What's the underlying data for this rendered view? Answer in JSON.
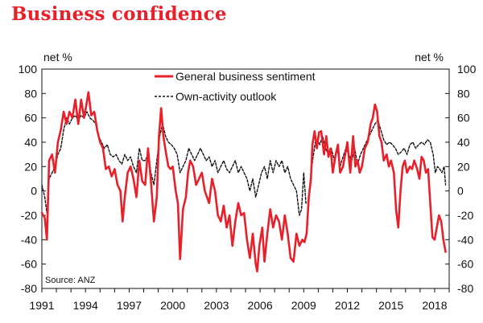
{
  "title": "Business confidence",
  "colors": {
    "title": "#e8202a",
    "sentiment": "#e8202a",
    "outlook": "#111111"
  },
  "chart_data": {
    "type": "line",
    "title": "Business confidence",
    "ylabel_left": "net %",
    "ylabel_right": "net %",
    "ylim": [
      -80,
      100
    ],
    "yticks": [
      100,
      80,
      60,
      40,
      20,
      0,
      -20,
      -40,
      -60,
      -80
    ],
    "yticks_right": [
      100,
      80,
      60,
      40,
      20,
      0,
      -20,
      -40,
      -60,
      -80
    ],
    "xlim": [
      1991,
      2019
    ],
    "xticks": [
      1991,
      1994,
      1997,
      2000,
      2003,
      2006,
      2009,
      2012,
      2015,
      2018
    ],
    "source": "Source: ANZ",
    "legend_location": "top-center",
    "series": [
      {
        "name": "General business sentiment",
        "style": "solid-red",
        "points": [
          [
            1991.0,
            -18
          ],
          [
            1991.2,
            -22
          ],
          [
            1991.35,
            -40
          ],
          [
            1991.5,
            25
          ],
          [
            1991.7,
            30
          ],
          [
            1991.9,
            15
          ],
          [
            1992.1,
            40
          ],
          [
            1992.3,
            50
          ],
          [
            1992.5,
            65
          ],
          [
            1992.7,
            55
          ],
          [
            1992.9,
            65
          ],
          [
            1993.1,
            60
          ],
          [
            1993.3,
            75
          ],
          [
            1993.5,
            55
          ],
          [
            1993.7,
            75
          ],
          [
            1993.9,
            60
          ],
          [
            1994.05,
            70
          ],
          [
            1994.2,
            81
          ],
          [
            1994.4,
            62
          ],
          [
            1994.6,
            65
          ],
          [
            1994.8,
            50
          ],
          [
            1995.0,
            40
          ],
          [
            1995.2,
            35
          ],
          [
            1995.4,
            18
          ],
          [
            1995.6,
            20
          ],
          [
            1995.8,
            12
          ],
          [
            1996.0,
            18
          ],
          [
            1996.2,
            5
          ],
          [
            1996.4,
            0
          ],
          [
            1996.55,
            -25
          ],
          [
            1996.7,
            -5
          ],
          [
            1996.9,
            15
          ],
          [
            1997.1,
            20
          ],
          [
            1997.3,
            10
          ],
          [
            1997.5,
            -5
          ],
          [
            1997.7,
            25
          ],
          [
            1997.9,
            8
          ],
          [
            1998.1,
            5
          ],
          [
            1998.3,
            35
          ],
          [
            1998.5,
            8
          ],
          [
            1998.7,
            -25
          ],
          [
            1998.9,
            -5
          ],
          [
            1999.05,
            45
          ],
          [
            1999.2,
            68
          ],
          [
            1999.35,
            45
          ],
          [
            1999.55,
            30
          ],
          [
            1999.7,
            20
          ],
          [
            1999.85,
            18
          ],
          [
            2000.0,
            20
          ],
          [
            2000.2,
            0
          ],
          [
            2000.35,
            -10
          ],
          [
            2000.5,
            -56
          ],
          [
            2000.7,
            -15
          ],
          [
            2000.9,
            -5
          ],
          [
            2001.05,
            15
          ],
          [
            2001.2,
            25
          ],
          [
            2001.4,
            20
          ],
          [
            2001.6,
            5
          ],
          [
            2001.8,
            10
          ],
          [
            2002.0,
            15
          ],
          [
            2002.2,
            0
          ],
          [
            2002.35,
            -5
          ],
          [
            2002.5,
            -10
          ],
          [
            2002.7,
            10
          ],
          [
            2002.9,
            0
          ],
          [
            2003.1,
            -20
          ],
          [
            2003.3,
            -25
          ],
          [
            2003.5,
            -12
          ],
          [
            2003.7,
            -30
          ],
          [
            2003.9,
            -20
          ],
          [
            2004.1,
            -45
          ],
          [
            2004.3,
            -25
          ],
          [
            2004.5,
            -10
          ],
          [
            2004.7,
            -20
          ],
          [
            2004.9,
            -18
          ],
          [
            2005.1,
            -40
          ],
          [
            2005.3,
            -55
          ],
          [
            2005.5,
            -35
          ],
          [
            2005.7,
            -60
          ],
          [
            2005.8,
            -66
          ],
          [
            2005.95,
            -45
          ],
          [
            2006.15,
            -30
          ],
          [
            2006.3,
            -58
          ],
          [
            2006.5,
            -35
          ],
          [
            2006.7,
            -15
          ],
          [
            2006.9,
            -30
          ],
          [
            2007.1,
            -20
          ],
          [
            2007.3,
            -25
          ],
          [
            2007.5,
            -40
          ],
          [
            2007.7,
            -20
          ],
          [
            2007.9,
            -35
          ],
          [
            2008.1,
            -55
          ],
          [
            2008.3,
            -58
          ],
          [
            2008.5,
            -35
          ],
          [
            2008.7,
            -45
          ],
          [
            2008.9,
            -40
          ],
          [
            2009.05,
            -42
          ],
          [
            2009.2,
            -35
          ],
          [
            2009.35,
            -5
          ],
          [
            2009.5,
            10
          ],
          [
            2009.6,
            38
          ],
          [
            2009.75,
            49
          ],
          [
            2009.9,
            35
          ],
          [
            2010.05,
            48
          ],
          [
            2010.2,
            49
          ],
          [
            2010.4,
            30
          ],
          [
            2010.55,
            45
          ],
          [
            2010.7,
            28
          ],
          [
            2010.85,
            35
          ],
          [
            2011.0,
            15
          ],
          [
            2011.2,
            30
          ],
          [
            2011.35,
            38
          ],
          [
            2011.5,
            15
          ],
          [
            2011.7,
            20
          ],
          [
            2011.85,
            30
          ],
          [
            2012.0,
            40
          ],
          [
            2012.2,
            15
          ],
          [
            2012.4,
            45
          ],
          [
            2012.55,
            20
          ],
          [
            2012.7,
            25
          ],
          [
            2012.85,
            15
          ],
          [
            2013.0,
            20
          ],
          [
            2013.2,
            35
          ],
          [
            2013.4,
            40
          ],
          [
            2013.6,
            55
          ],
          [
            2013.75,
            60
          ],
          [
            2013.9,
            71
          ],
          [
            2014.05,
            65
          ],
          [
            2014.2,
            45
          ],
          [
            2014.35,
            40
          ],
          [
            2014.5,
            25
          ],
          [
            2014.7,
            30
          ],
          [
            2014.85,
            20
          ],
          [
            2015.0,
            25
          ],
          [
            2015.2,
            15
          ],
          [
            2015.35,
            -15
          ],
          [
            2015.5,
            -30
          ],
          [
            2015.65,
            0
          ],
          [
            2015.8,
            20
          ],
          [
            2015.95,
            25
          ],
          [
            2016.1,
            15
          ],
          [
            2016.3,
            20
          ],
          [
            2016.45,
            18
          ],
          [
            2016.6,
            25
          ],
          [
            2016.8,
            18
          ],
          [
            2016.95,
            10
          ],
          [
            2017.1,
            28
          ],
          [
            2017.25,
            25
          ],
          [
            2017.4,
            15
          ],
          [
            2017.55,
            18
          ],
          [
            2017.7,
            -10
          ],
          [
            2017.85,
            -38
          ],
          [
            2018.0,
            -40
          ],
          [
            2018.15,
            -30
          ],
          [
            2018.3,
            -20
          ],
          [
            2018.45,
            -25
          ],
          [
            2018.6,
            -40
          ],
          [
            2018.75,
            -50
          ]
        ]
      },
      {
        "name": "Own-activity outlook",
        "style": "dashed-black",
        "points": [
          [
            1991.0,
            5
          ],
          [
            1991.2,
            -5
          ],
          [
            1991.35,
            -18
          ],
          [
            1991.5,
            10
          ],
          [
            1991.7,
            15
          ],
          [
            1991.9,
            20
          ],
          [
            1992.1,
            30
          ],
          [
            1992.3,
            35
          ],
          [
            1992.5,
            50
          ],
          [
            1992.7,
            60
          ],
          [
            1992.9,
            55
          ],
          [
            1993.1,
            60
          ],
          [
            1993.3,
            62
          ],
          [
            1993.5,
            58
          ],
          [
            1993.7,
            62
          ],
          [
            1993.9,
            60
          ],
          [
            1994.1,
            65
          ],
          [
            1994.3,
            60
          ],
          [
            1994.5,
            58
          ],
          [
            1994.7,
            55
          ],
          [
            1994.9,
            45
          ],
          [
            1995.1,
            40
          ],
          [
            1995.3,
            35
          ],
          [
            1995.5,
            38
          ],
          [
            1995.7,
            30
          ],
          [
            1995.9,
            28
          ],
          [
            1996.1,
            30
          ],
          [
            1996.3,
            25
          ],
          [
            1996.5,
            22
          ],
          [
            1996.7,
            30
          ],
          [
            1996.9,
            25
          ],
          [
            1997.1,
            28
          ],
          [
            1997.3,
            20
          ],
          [
            1997.5,
            15
          ],
          [
            1997.7,
            35
          ],
          [
            1997.9,
            25
          ],
          [
            1998.1,
            25
          ],
          [
            1998.3,
            30
          ],
          [
            1998.5,
            15
          ],
          [
            1998.7,
            5
          ],
          [
            1998.9,
            25
          ],
          [
            1999.1,
            45
          ],
          [
            1999.3,
            55
          ],
          [
            1999.5,
            45
          ],
          [
            1999.7,
            40
          ],
          [
            1999.9,
            38
          ],
          [
            2000.1,
            35
          ],
          [
            2000.3,
            30
          ],
          [
            2000.5,
            15
          ],
          [
            2000.7,
            20
          ],
          [
            2000.9,
            25
          ],
          [
            2001.1,
            35
          ],
          [
            2001.3,
            30
          ],
          [
            2001.5,
            25
          ],
          [
            2001.7,
            30
          ],
          [
            2001.9,
            35
          ],
          [
            2002.1,
            30
          ],
          [
            2002.3,
            25
          ],
          [
            2002.5,
            28
          ],
          [
            2002.7,
            20
          ],
          [
            2002.9,
            25
          ],
          [
            2003.1,
            15
          ],
          [
            2003.3,
            20
          ],
          [
            2003.5,
            25
          ],
          [
            2003.7,
            18
          ],
          [
            2003.9,
            15
          ],
          [
            2004.1,
            20
          ],
          [
            2004.3,
            25
          ],
          [
            2004.5,
            15
          ],
          [
            2004.7,
            20
          ],
          [
            2004.9,
            15
          ],
          [
            2005.1,
            10
          ],
          [
            2005.3,
            0
          ],
          [
            2005.5,
            10
          ],
          [
            2005.7,
            -5
          ],
          [
            2005.9,
            5
          ],
          [
            2006.1,
            15
          ],
          [
            2006.3,
            20
          ],
          [
            2006.5,
            10
          ],
          [
            2006.7,
            25
          ],
          [
            2006.9,
            15
          ],
          [
            2007.1,
            25
          ],
          [
            2007.3,
            20
          ],
          [
            2007.5,
            25
          ],
          [
            2007.7,
            15
          ],
          [
            2007.9,
            20
          ],
          [
            2008.1,
            10
          ],
          [
            2008.3,
            5
          ],
          [
            2008.5,
            0
          ],
          [
            2008.7,
            -20
          ],
          [
            2008.85,
            -15
          ],
          [
            2009.0,
            15
          ],
          [
            2009.15,
            -10
          ],
          [
            2009.3,
            -10
          ],
          [
            2009.5,
            15
          ],
          [
            2009.65,
            28
          ],
          [
            2009.8,
            40
          ],
          [
            2009.95,
            42
          ],
          [
            2010.1,
            38
          ],
          [
            2010.3,
            45
          ],
          [
            2010.5,
            35
          ],
          [
            2010.7,
            30
          ],
          [
            2010.9,
            35
          ],
          [
            2011.1,
            25
          ],
          [
            2011.3,
            35
          ],
          [
            2011.5,
            20
          ],
          [
            2011.7,
            28
          ],
          [
            2011.9,
            35
          ],
          [
            2012.1,
            30
          ],
          [
            2012.3,
            25
          ],
          [
            2012.5,
            35
          ],
          [
            2012.7,
            22
          ],
          [
            2012.9,
            30
          ],
          [
            2013.1,
            35
          ],
          [
            2013.3,
            40
          ],
          [
            2013.5,
            45
          ],
          [
            2013.7,
            50
          ],
          [
            2013.9,
            55
          ],
          [
            2014.1,
            58
          ],
          [
            2014.3,
            50
          ],
          [
            2014.5,
            42
          ],
          [
            2014.7,
            38
          ],
          [
            2014.9,
            40
          ],
          [
            2015.1,
            38
          ],
          [
            2015.3,
            35
          ],
          [
            2015.5,
            30
          ],
          [
            2015.7,
            32
          ],
          [
            2015.9,
            35
          ],
          [
            2016.1,
            30
          ],
          [
            2016.3,
            38
          ],
          [
            2016.5,
            40
          ],
          [
            2016.7,
            35
          ],
          [
            2016.9,
            38
          ],
          [
            2017.1,
            40
          ],
          [
            2017.3,
            38
          ],
          [
            2017.5,
            42
          ],
          [
            2017.7,
            40
          ],
          [
            2017.9,
            30
          ],
          [
            2018.05,
            15
          ],
          [
            2018.2,
            20
          ],
          [
            2018.35,
            18
          ],
          [
            2018.5,
            15
          ],
          [
            2018.65,
            20
          ],
          [
            2018.75,
            5
          ]
        ]
      }
    ]
  }
}
